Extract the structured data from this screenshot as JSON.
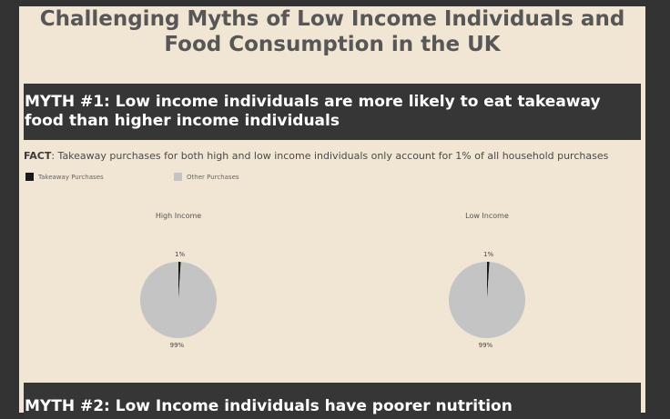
{
  "title": "Challenging Myths of Low Income Individuals and Food Consumption in the UK",
  "myth1": {
    "heading": "MYTH #1: Low income individuals are more likely to eat takeaway food than higher income individuals",
    "fact_label": "FACT",
    "fact_text": ": Takeaway purchases for both high and low income individuals only account for 1% of all household purchases"
  },
  "legend": [
    {
      "label": "Takeaway Purchases",
      "color": "#1a1a1a"
    },
    {
      "label": "Other Purchases",
      "color": "#c4c4c4"
    }
  ],
  "chart_data": [
    {
      "type": "pie",
      "title": "High Income",
      "categories": [
        "Takeaway Purchases",
        "Other Purchases"
      ],
      "values": [
        1,
        99
      ],
      "labels": [
        "1%",
        "99%"
      ],
      "colors": [
        "#1a1a1a",
        "#c4c4c4"
      ]
    },
    {
      "type": "pie",
      "title": "Low Income",
      "categories": [
        "Takeaway Purchases",
        "Other Purchases"
      ],
      "values": [
        1,
        99
      ],
      "labels": [
        "1%",
        "99%"
      ],
      "colors": [
        "#1a1a1a",
        "#c4c4c4"
      ]
    }
  ],
  "myth2": {
    "heading": "MYTH #2: Low Income individuals have poorer nutrition"
  }
}
